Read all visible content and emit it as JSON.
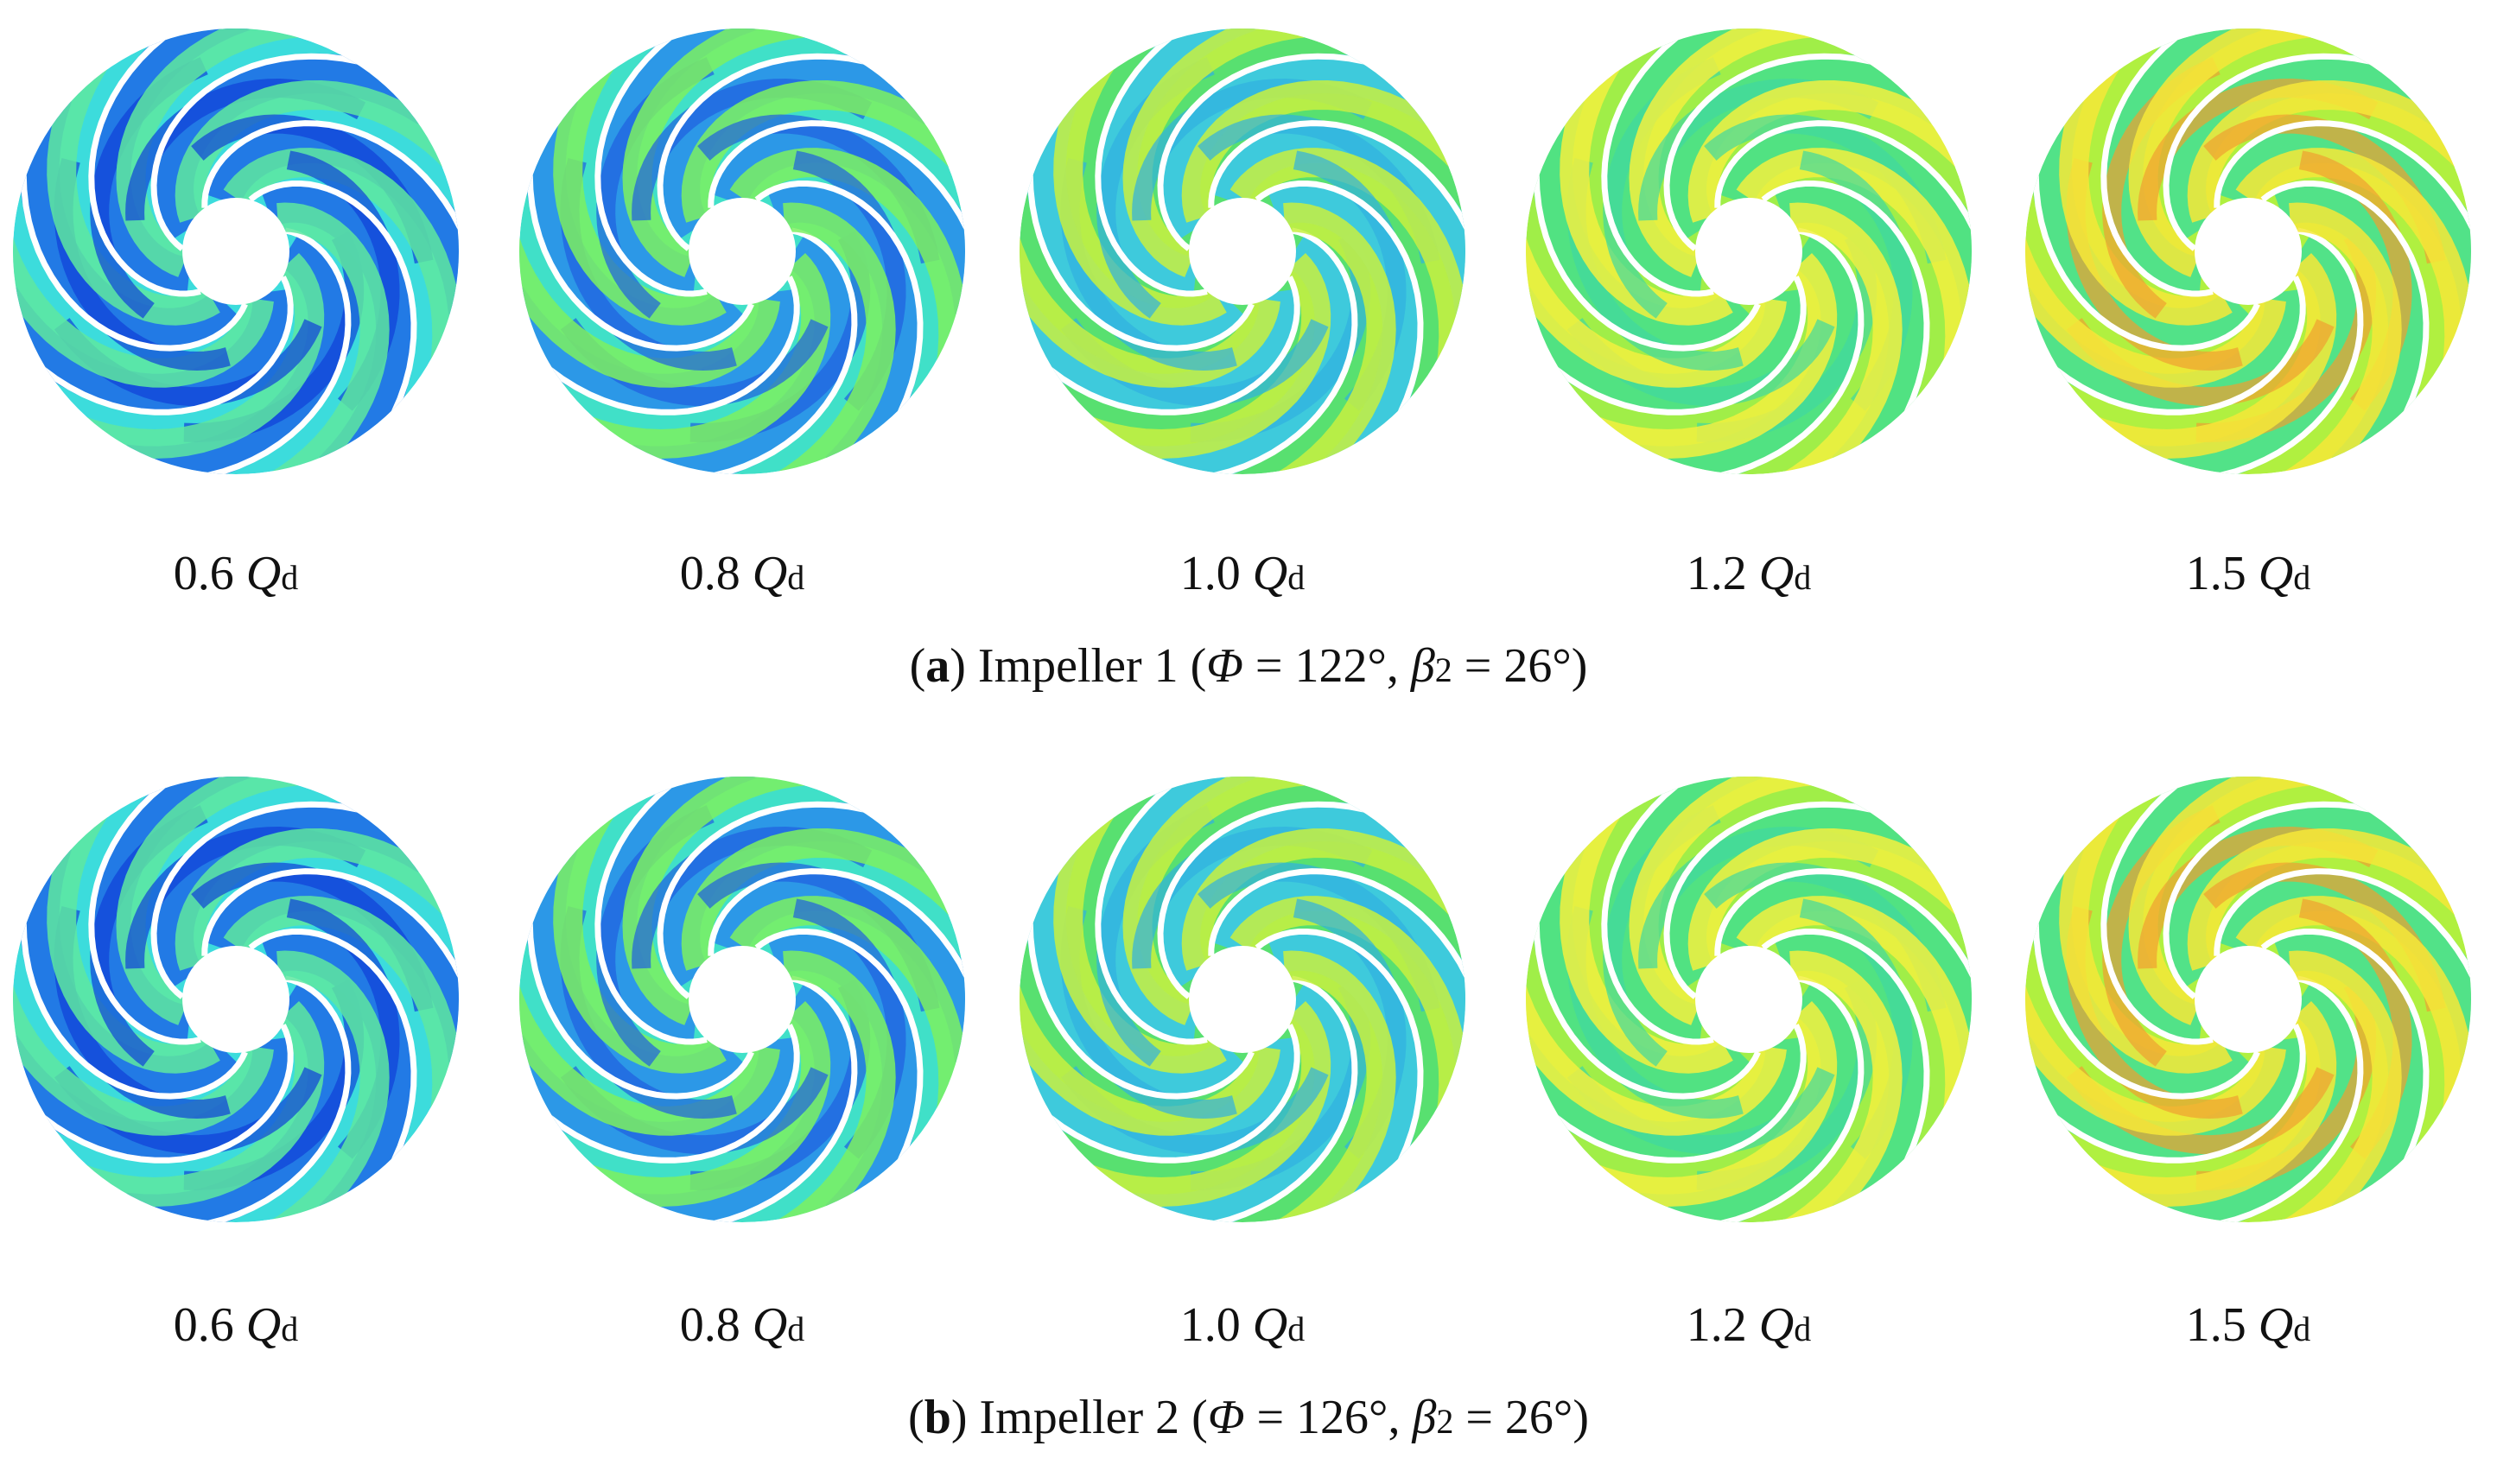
{
  "panels": [
    {
      "conditions": [
        {
          "value": "0.6",
          "symbol": "Q",
          "subscript": "d"
        },
        {
          "value": "0.8",
          "symbol": "Q",
          "subscript": "d"
        },
        {
          "value": "1.0",
          "symbol": "Q",
          "subscript": "d"
        },
        {
          "value": "1.2",
          "symbol": "Q",
          "subscript": "d"
        },
        {
          "value": "1.5",
          "symbol": "Q",
          "subscript": "d"
        }
      ],
      "caption": [
        {
          "text": "(",
          "style": "normal"
        },
        {
          "text": "a",
          "style": "bold"
        },
        {
          "text": ") Impeller 1 (",
          "style": "normal"
        },
        {
          "text": "Φ",
          "style": "italic"
        },
        {
          "text": " = 122°, ",
          "style": "normal"
        },
        {
          "text": "β",
          "style": "italic"
        },
        {
          "text": "2",
          "style": "sub"
        },
        {
          "text": " = 26°)",
          "style": "normal"
        }
      ]
    },
    {
      "conditions": [
        {
          "value": "0.6",
          "symbol": "Q",
          "subscript": "d"
        },
        {
          "value": "0.8",
          "symbol": "Q",
          "subscript": "d"
        },
        {
          "value": "1.0",
          "symbol": "Q",
          "subscript": "d"
        },
        {
          "value": "1.2",
          "symbol": "Q",
          "subscript": "d"
        },
        {
          "value": "1.5",
          "symbol": "Q",
          "subscript": "d"
        }
      ],
      "caption": [
        {
          "text": "(",
          "style": "normal"
        },
        {
          "text": "b",
          "style": "bold"
        },
        {
          "text": ") Impeller 2 (",
          "style": "normal"
        },
        {
          "text": "Φ",
          "style": "italic"
        },
        {
          "text": " = 126°, ",
          "style": "normal"
        },
        {
          "text": "β",
          "style": "italic"
        },
        {
          "text": "2",
          "style": "sub"
        },
        {
          "text": " = 26°)",
          "style": "normal"
        }
      ]
    }
  ]
}
